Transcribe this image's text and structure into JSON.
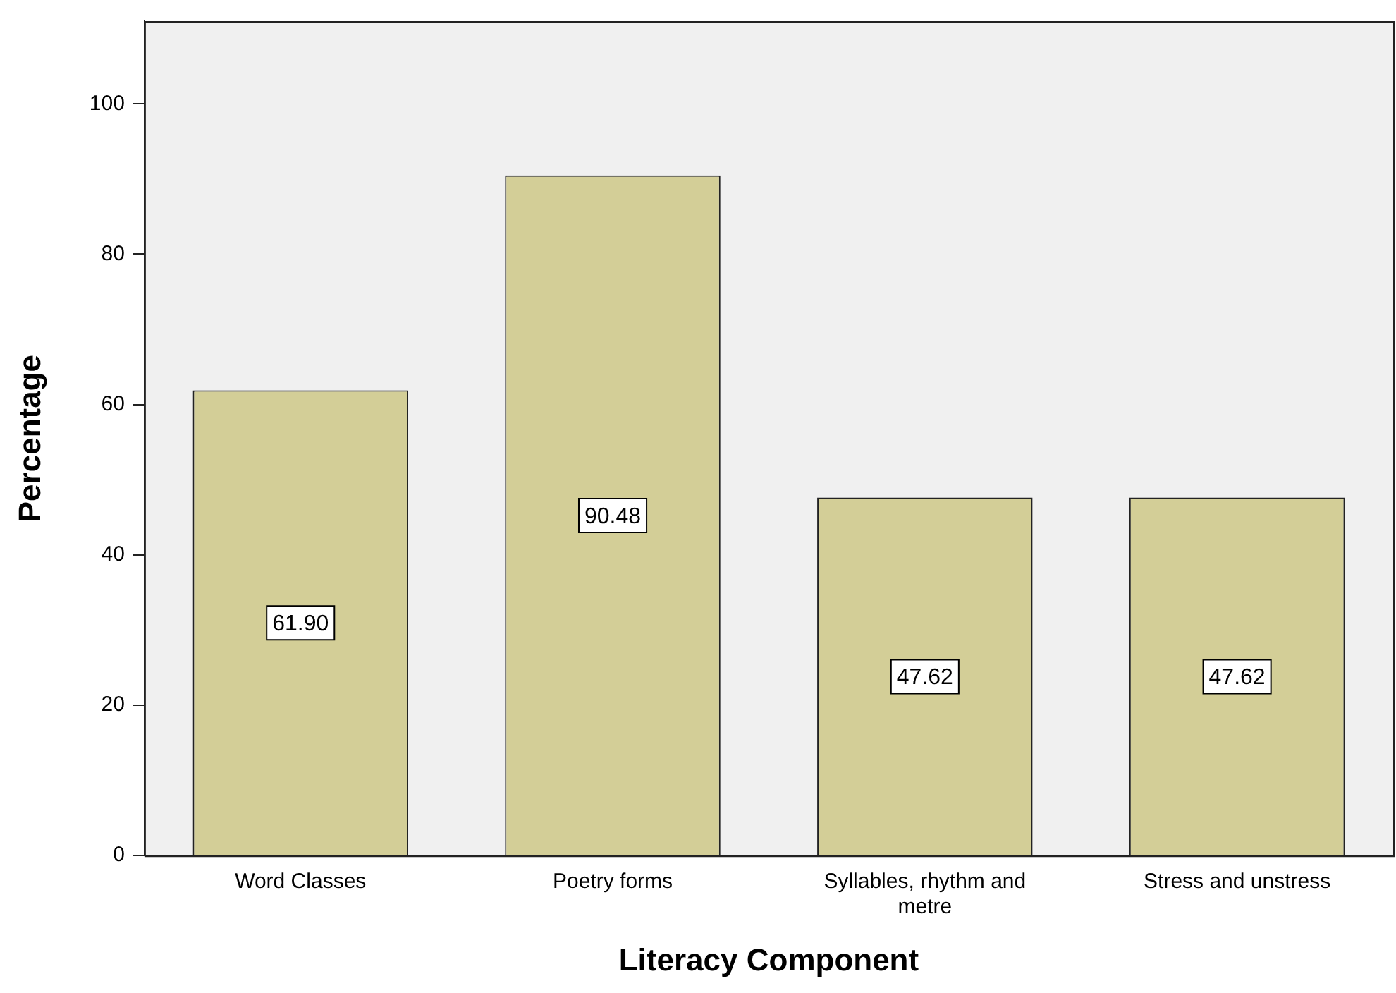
{
  "chart_data": {
    "type": "bar",
    "xlabel": "Literacy Component",
    "ylabel": "Percentage",
    "categories": [
      "Word Classes",
      "Poetry forms",
      "Syllables, rhythm and metre",
      "Stress and unstress"
    ],
    "values": [
      61.9,
      90.48,
      47.62,
      47.62
    ],
    "value_labels": [
      "61.90",
      "90.48",
      "47.62",
      "47.62"
    ],
    "color": "#d3ce97",
    "ylim": [
      0,
      111
    ],
    "yticks": [
      0,
      20,
      40,
      60,
      80,
      100
    ],
    "grid": false,
    "legend": false
  }
}
